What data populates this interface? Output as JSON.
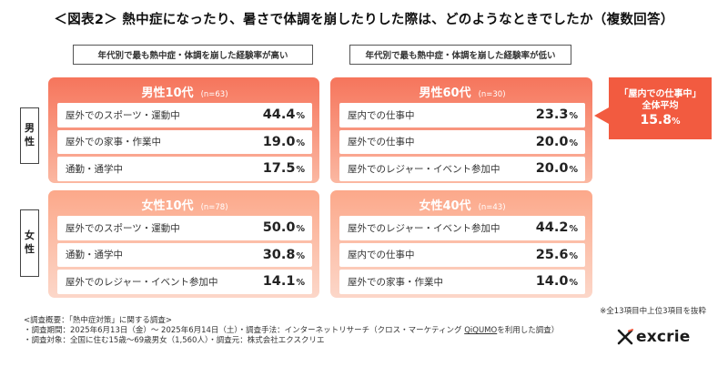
{
  "title": "＜図表2＞ 熱中症になったり、暑さで体調を崩したりした際は、どのようなときでしたか（複数回答）",
  "subheaders": {
    "left": "年代別で最も熱中症・体調を崩した経験率が高い",
    "right": "年代別で最も熱中症・体調を崩した経験率が低い"
  },
  "row_labels": {
    "male": [
      "男",
      "性"
    ],
    "female": [
      "女",
      "性"
    ]
  },
  "panels": {
    "male_high": {
      "title": "男性10代",
      "n": "(n=63)",
      "items": [
        {
          "label": "屋外でのスポーツ・運動中",
          "value": "44.4",
          "unit": "%"
        },
        {
          "label": "屋外での家事・作業中",
          "value": "19.0",
          "unit": "%"
        },
        {
          "label": "通勤・通学中",
          "value": "17.5",
          "unit": "%"
        }
      ]
    },
    "male_low": {
      "title": "男性60代",
      "n": "(n=30)",
      "items": [
        {
          "label": "屋内での仕事中",
          "value": "23.3",
          "unit": "%"
        },
        {
          "label": "屋外での仕事中",
          "value": "20.0",
          "unit": "%"
        },
        {
          "label": "屋外でのレジャー・イベント参加中",
          "value": "20.0",
          "unit": "%"
        }
      ]
    },
    "female_high": {
      "title": "女性10代",
      "n": "(n=78)",
      "items": [
        {
          "label": "屋外でのスポーツ・運動中",
          "value": "50.0",
          "unit": "%"
        },
        {
          "label": "通勤・通学中",
          "value": "30.8",
          "unit": "%"
        },
        {
          "label": "屋外でのレジャー・イベント参加中",
          "value": "14.1",
          "unit": "%"
        }
      ]
    },
    "female_low": {
      "title": "女性40代",
      "n": "(n=43)",
      "items": [
        {
          "label": "屋外でのレジャー・イベント参加中",
          "value": "44.2",
          "unit": "%"
        },
        {
          "label": "屋内での仕事中",
          "value": "25.6",
          "unit": "%"
        },
        {
          "label": "屋外での家事・作業中",
          "value": "14.0",
          "unit": "%"
        }
      ]
    }
  },
  "callout": {
    "line1": "「屋内での仕事中」",
    "line2": "全体平均",
    "value": "15.8",
    "unit": "%"
  },
  "note_right": "※全13項目中上位3項目を抜粋",
  "footnotes": {
    "line0": "<調査概要：「熱中症対策」に関する調査>",
    "line1_pre": "・調査期間：2025年6月13日（金）～ 2025年6月14日（土）・調査手法：インターネットリサーチ（クロス・マーケティング ",
    "line1_link": "QiQUMO",
    "line1_post": "を利用した調査）",
    "line2": "・調査対象：全国に住む15歳～69歳男女（1,560人）・調査元：株式会社エクスクリエ"
  },
  "logo": {
    "text": "excrie"
  },
  "colors": {
    "male_panel_top": "#f6755c",
    "female_panel_top": "#fca88a",
    "callout": "#f25b40"
  }
}
